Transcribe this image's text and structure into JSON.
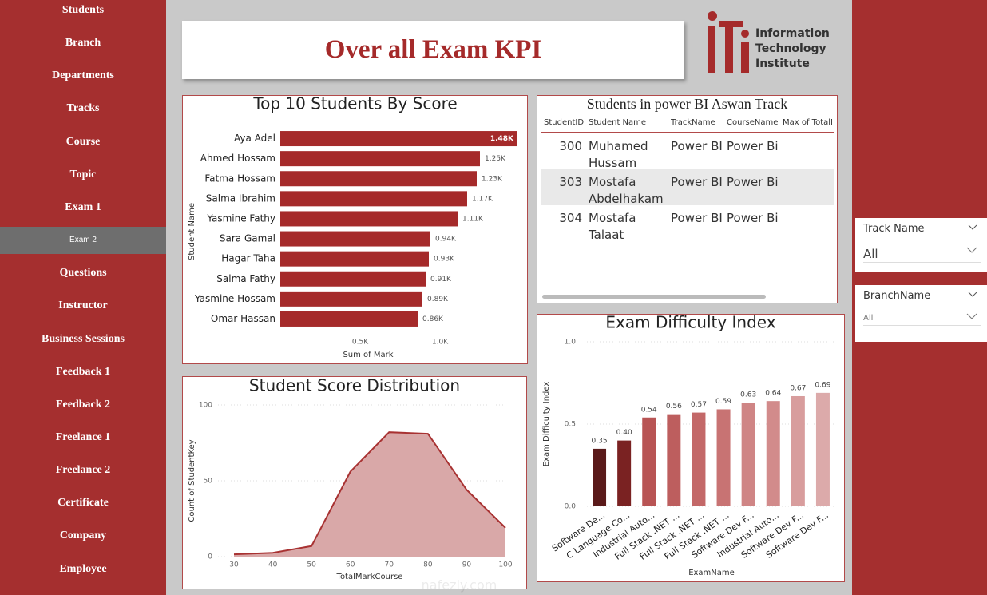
{
  "nav": {
    "items": [
      "Students",
      "Branch",
      "Departments",
      "Tracks",
      "Course",
      "Topic",
      "Exam 1",
      "Exam 2",
      "Questions",
      "Instructor",
      "Business Sessions",
      "Feedback 1",
      "Feedback 2",
      "Freelance 1",
      "Freelance 2",
      "Certificate",
      "Company",
      "Employee"
    ],
    "active": 7
  },
  "header": {
    "title": "Over all Exam KPI",
    "logo": [
      "Information",
      "Technology",
      "Institute"
    ]
  },
  "table": {
    "title": "Students in power BI Aswan Track",
    "columns": [
      "StudentID",
      "Student Name",
      "TrackName",
      "CourseName",
      "Max of TotalM"
    ],
    "rows": [
      [
        300,
        "Muhamed Hussam",
        "Power BI",
        "Power Bi"
      ],
      [
        303,
        "Mostafa Abdelhakam",
        "Power BI",
        "Power Bi"
      ],
      [
        304,
        "Mostafa Talaat",
        "Power BI",
        "Power Bi"
      ]
    ]
  },
  "slicers": [
    {
      "label": "Track Name",
      "value": "All"
    },
    {
      "label": "BranchName",
      "value": "All"
    }
  ],
  "watermark": "nafezly.com",
  "chart_data": [
    {
      "type": "bar",
      "orientation": "horizontal",
      "title": "Top 10 Students By Score",
      "y_label": "Student Name",
      "x_label": "Sum of Mark",
      "categories": [
        "Aya Adel",
        "Ahmed Hossam",
        "Fatma Hossam",
        "Salma Ibrahim",
        "Yasmine Fathy",
        "Sara Gamal",
        "Hagar Taha",
        "Salma Fathy",
        "Yasmine Hossam",
        "Omar Hassan"
      ],
      "values": [
        1480,
        1250,
        1230,
        1170,
        1110,
        940,
        930,
        910,
        890,
        860
      ],
      "value_labels": [
        "1.48K",
        "1.25K",
        "1.23K",
        "1.17K",
        "1.11K",
        "0.94K",
        "0.93K",
        "0.91K",
        "0.89K",
        "0.86K"
      ],
      "color": "#a52a2a",
      "xlim": [
        0,
        1500
      ],
      "xticks": [
        {
          "value": 500,
          "label": "0.5K"
        },
        {
          "value": 1000,
          "label": "1.0K"
        }
      ],
      "grid": false
    },
    {
      "type": "area",
      "title": "Student Score Distribution",
      "x_label": "TotalMarkCourse",
      "y_label": "Count of StudentKey",
      "x": [
        30,
        40,
        50,
        60,
        70,
        80,
        90,
        100
      ],
      "values": [
        1.5,
        2.5,
        7,
        56,
        82,
        81,
        44,
        19
      ],
      "color": "#a83232",
      "fill": "#d9a8a8",
      "xlim": [
        30,
        100
      ],
      "xticks": [
        30,
        40,
        50,
        60,
        70,
        80,
        90,
        100
      ],
      "ylim": [
        0,
        100
      ],
      "yticks": [
        0,
        50,
        100
      ],
      "grid": true
    },
    {
      "type": "bar",
      "orientation": "vertical",
      "title": "Exam Difficulty Index",
      "x_label": "ExamName",
      "y_label": "Exam Difficulty Index",
      "categories": [
        "Software De...",
        "C Language Co...",
        "Industrial Auto...",
        "Full Stack .NET ...",
        "Full Stack .NET ...",
        "Full Stack .NET ...",
        "Software Dev F...",
        "Industrial Auto...",
        "Software Dev F...",
        "Software Dev F..."
      ],
      "values": [
        0.35,
        0.4,
        0.54,
        0.56,
        0.57,
        0.59,
        0.63,
        0.64,
        0.67,
        0.69
      ],
      "value_labels": [
        "0.35",
        "0.40",
        "0.54",
        "0.56",
        "0.57",
        "0.59",
        "0.63",
        "0.64",
        "0.67",
        "0.69"
      ],
      "colors": [
        "#5a1a1a",
        "#7a2222",
        "#b85454",
        "#bd5e5e",
        "#c36868",
        "#c87373",
        "#cf8585",
        "#d28b8b",
        "#d89d9d",
        "#dcaaaa"
      ],
      "ylim": [
        0,
        1
      ],
      "yticks": [
        {
          "value": 0,
          "label": "0.0"
        },
        0.5,
        {
          "value": 1,
          "label": "1.0"
        }
      ],
      "grid": true
    }
  ]
}
